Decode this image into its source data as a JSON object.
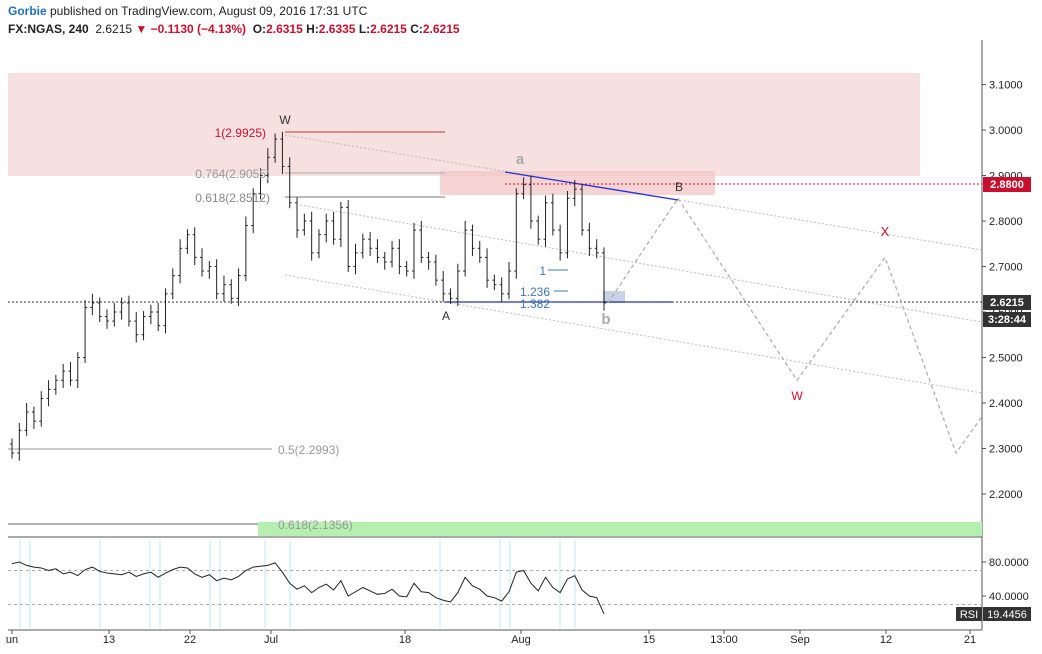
{
  "header": {
    "author": "Gorbie",
    "published_text": " published on TradingView.com, August 09, 2016 17:31 UTC",
    "symbol": "FX:NGAS, 240",
    "last": "2.6215",
    "change": "▼ −0.1130 (−4.13%)",
    "o_label": "O:",
    "o": "2.6315",
    "h_label": "H:",
    "h": "2.6335",
    "l_label": "L:",
    "l": "2.6215",
    "c_label": "C:",
    "c": "2.6215"
  },
  "chart_data": [
    {
      "type": "candlestick",
      "title": "FX:NGAS, 240",
      "y_ticks": [
        "3.1000",
        "3.0000",
        "2.9000",
        "2.8000",
        "2.7000",
        "2.6000",
        "2.5000",
        "2.4000",
        "2.3000",
        "2.2000"
      ],
      "ylim": [
        2.12,
        3.22
      ],
      "x_ticks": [
        "un",
        "13",
        "22",
        "Jul",
        "18",
        "Aug",
        "15",
        "13:00",
        "Sep",
        "12",
        "21"
      ],
      "price_labels": {
        "red_level": "2.8800",
        "last_price": "2.6215",
        "countdown": "3:28:44"
      },
      "fibonacci": [
        {
          "label": "1(2.9925)",
          "value": 2.9925
        },
        {
          "label": "0.764(2.9055)",
          "value": 2.9055
        },
        {
          "label": "0.618(2.8512)",
          "value": 2.8512
        },
        {
          "label": "0.5(2.2993)",
          "value": 2.2993
        },
        {
          "label": "0.618(2.1356)",
          "value": 2.1356
        }
      ],
      "extensions": [
        {
          "label": "1",
          "value": 2.694
        },
        {
          "label": "1.236",
          "value": 2.645
        },
        {
          "label": "1.382",
          "value": 2.621
        }
      ],
      "wave_labels": [
        "W",
        "A",
        "a",
        "B",
        "b",
        "X",
        "W"
      ],
      "projection": [
        {
          "x": "Aug 09",
          "y": 2.62
        },
        {
          "x": "Aug 17",
          "y": 2.85
        },
        {
          "x": "Aug 31",
          "y": 2.45
        },
        {
          "x": "Sep 12",
          "y": 2.72
        },
        {
          "x": "Sep 20",
          "y": 2.29
        },
        {
          "x": "Sep 23",
          "y": 2.37
        }
      ],
      "close_series": [
        2.29,
        2.34,
        2.38,
        2.36,
        2.41,
        2.43,
        2.45,
        2.47,
        2.45,
        2.5,
        2.61,
        2.62,
        2.59,
        2.58,
        2.6,
        2.62,
        2.58,
        2.55,
        2.59,
        2.6,
        2.57,
        2.64,
        2.68,
        2.74,
        2.77,
        2.72,
        2.69,
        2.7,
        2.64,
        2.66,
        2.63,
        2.68,
        2.79,
        2.86,
        2.9,
        2.94,
        2.98,
        2.92,
        2.84,
        2.78,
        2.8,
        2.73,
        2.77,
        2.8,
        2.76,
        2.83,
        2.7,
        2.73,
        2.76,
        2.74,
        2.72,
        2.71,
        2.74,
        2.7,
        2.69,
        2.78,
        2.72,
        2.71,
        2.67,
        2.64,
        2.63,
        2.69,
        2.78,
        2.74,
        2.72,
        2.67,
        2.66,
        2.64,
        2.69,
        2.86,
        2.88,
        2.8,
        2.76,
        2.84,
        2.78,
        2.73,
        2.85,
        2.87,
        2.78,
        2.74,
        2.73,
        2.62
      ]
    },
    {
      "type": "line",
      "title": "RSI",
      "y_ticks": [
        "80.0000",
        "40.0000"
      ],
      "ylim": [
        10,
        100
      ],
      "levels": [
        70,
        30
      ],
      "current_value": "19.4456",
      "values": [
        78,
        80,
        76,
        74,
        73,
        70,
        72,
        66,
        68,
        64,
        71,
        74,
        69,
        67,
        66,
        65,
        68,
        63,
        66,
        68,
        62,
        67,
        71,
        74,
        73,
        66,
        62,
        65,
        58,
        61,
        59,
        63,
        70,
        74,
        75,
        76,
        79,
        68,
        55,
        48,
        52,
        44,
        50,
        54,
        47,
        58,
        40,
        45,
        50,
        46,
        42,
        43,
        48,
        40,
        39,
        55,
        45,
        44,
        38,
        35,
        33,
        44,
        62,
        52,
        48,
        40,
        38,
        34,
        45,
        68,
        70,
        55,
        46,
        62,
        50,
        44,
        60,
        64,
        47,
        40,
        38,
        19
      ]
    }
  ]
}
